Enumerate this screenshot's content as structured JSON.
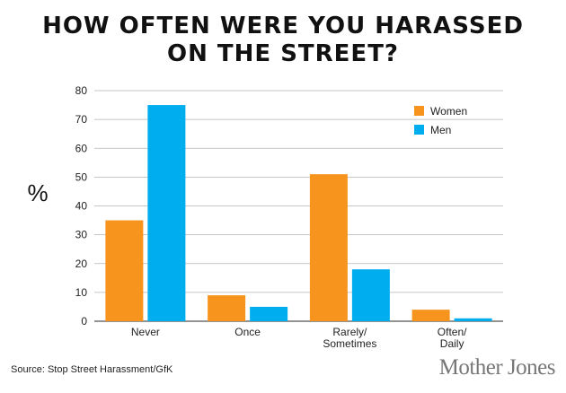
{
  "title_line1": "HOW OFTEN WERE YOU HARASSED",
  "title_line2": "ON THE STREET?",
  "source": "Source: Stop Street Harassment/GfK",
  "brand": "Mother Jones",
  "chart_data": {
    "type": "bar",
    "categories": [
      [
        "Never"
      ],
      [
        "Once"
      ],
      [
        "Rarely/",
        "Sometimes"
      ],
      [
        "Often/",
        "Daily"
      ]
    ],
    "series": [
      {
        "name": "Women",
        "color": "#f7941d",
        "values": [
          35,
          9,
          51,
          4
        ]
      },
      {
        "name": "Men",
        "color": "#00aeef",
        "values": [
          75,
          5,
          18,
          1
        ]
      }
    ],
    "ylabel": "%",
    "ylim": [
      0,
      80
    ],
    "yticks": [
      0,
      10,
      20,
      30,
      40,
      50,
      60,
      70,
      80
    ],
    "grid": true,
    "legend_position": "top-right"
  }
}
